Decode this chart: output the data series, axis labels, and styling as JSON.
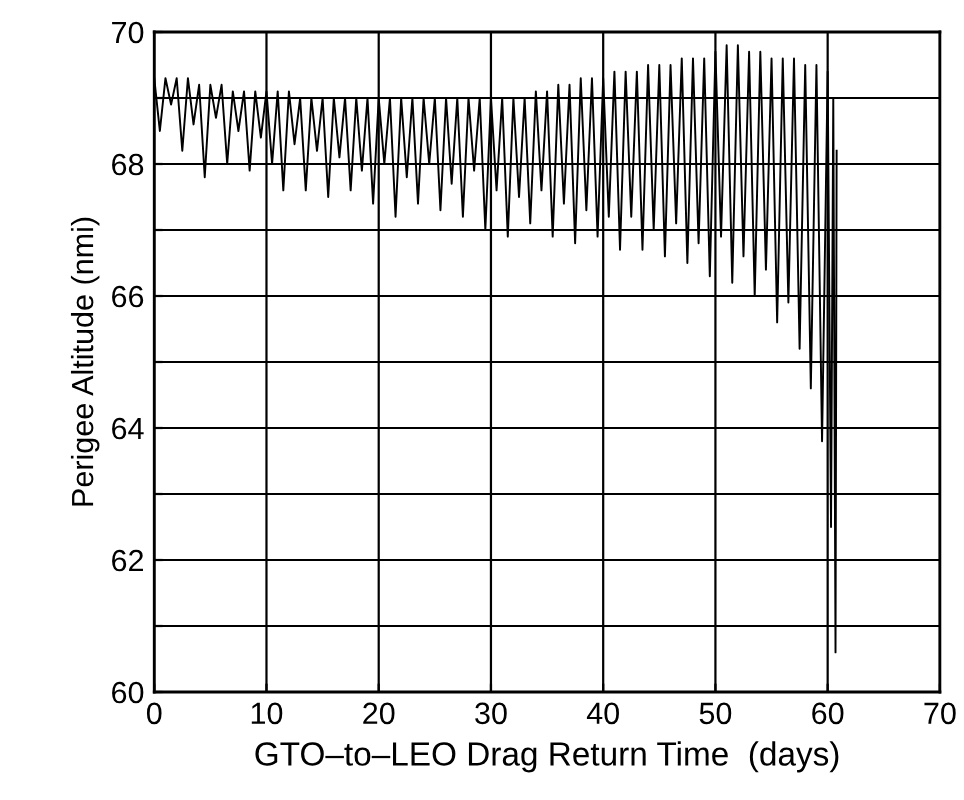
{
  "chart_data": {
    "type": "line",
    "xlabel": "GTO–to–LEO Drag Return Time  (days)",
    "ylabel": "Perigee Altitude (nmi)",
    "xlim": [
      0,
      70
    ],
    "ylim": [
      60,
      70
    ],
    "xticks": [
      0,
      10,
      20,
      30,
      40,
      50,
      60,
      70
    ],
    "yticks": [
      60,
      {
        "value": 61,
        "label": null
      },
      62,
      {
        "value": 63,
        "label": null
      },
      64,
      {
        "value": 65,
        "label": null
      },
      66,
      {
        "value": 67,
        "label": null
      },
      68,
      {
        "value": 69,
        "label": null
      },
      70
    ],
    "grid": true,
    "marker": "none",
    "line_style": "solid",
    "series": [
      {
        "color": "#000000",
        "x": [
          0,
          0.5,
          1,
          1.5,
          2,
          2.5,
          3,
          3.5,
          4,
          4.5,
          5,
          5.5,
          6,
          6.5,
          7,
          7.5,
          8,
          8.5,
          9,
          9.5,
          10,
          10.5,
          11,
          11.5,
          12,
          12.5,
          13,
          13.5,
          14,
          14.5,
          15,
          15.5,
          16,
          16.5,
          17,
          17.5,
          18,
          18.5,
          19,
          19.5,
          20,
          20.5,
          21,
          21.5,
          22,
          22.5,
          23,
          23.5,
          24,
          24.5,
          25,
          25.5,
          26,
          26.5,
          27,
          27.5,
          28,
          28.5,
          29,
          29.5,
          30,
          30.5,
          31,
          31.5,
          32,
          32.5,
          33,
          33.5,
          34,
          34.5,
          35,
          35.5,
          36,
          36.5,
          37,
          37.5,
          38,
          38.5,
          39,
          39.5,
          40,
          40.5,
          41,
          41.5,
          42,
          42.5,
          43,
          43.5,
          44,
          44.5,
          45,
          45.5,
          46,
          46.5,
          47,
          47.5,
          48,
          48.5,
          49,
          49.5,
          50,
          50.5,
          51,
          51.5,
          52,
          52.5,
          53,
          53.5,
          54,
          54.5,
          55,
          55.5,
          56,
          56.5,
          57,
          57.5,
          58,
          58.5,
          59,
          59.5,
          60,
          60.3,
          60.5,
          60.7,
          60.8
        ],
        "values": [
          69.3,
          68.5,
          69.3,
          68.9,
          69.3,
          68.2,
          69.3,
          68.6,
          69.2,
          67.8,
          69.2,
          68.7,
          69.2,
          68.0,
          69.1,
          68.5,
          69.1,
          67.9,
          69.1,
          68.4,
          69.1,
          68.0,
          69.1,
          67.6,
          69.1,
          68.3,
          69.0,
          67.6,
          69.0,
          68.2,
          69.0,
          67.5,
          69.0,
          68.1,
          69.0,
          67.6,
          69.0,
          67.9,
          69.0,
          67.4,
          69.0,
          68.0,
          69.0,
          67.2,
          69.0,
          67.8,
          69.0,
          67.4,
          69.0,
          68.0,
          69.0,
          67.3,
          69.0,
          67.7,
          69.0,
          67.2,
          69.0,
          67.9,
          69.0,
          67.0,
          69.0,
          67.6,
          69.0,
          66.9,
          69.0,
          67.5,
          69.0,
          67.1,
          69.1,
          67.6,
          69.1,
          66.9,
          69.2,
          67.4,
          69.2,
          66.8,
          69.3,
          67.3,
          69.3,
          66.9,
          69.3,
          67.2,
          69.4,
          66.7,
          69.4,
          67.2,
          69.4,
          66.7,
          69.5,
          67.0,
          69.5,
          66.6,
          69.5,
          67.1,
          69.6,
          66.5,
          69.6,
          66.8,
          69.6,
          66.3,
          69.7,
          66.9,
          69.8,
          66.2,
          69.8,
          66.6,
          69.7,
          66.0,
          69.7,
          66.4,
          69.6,
          65.6,
          69.6,
          65.9,
          69.6,
          65.2,
          69.5,
          64.6,
          69.5,
          63.8,
          69.4,
          62.5,
          69.0,
          60.6,
          68.2
        ]
      }
    ]
  }
}
